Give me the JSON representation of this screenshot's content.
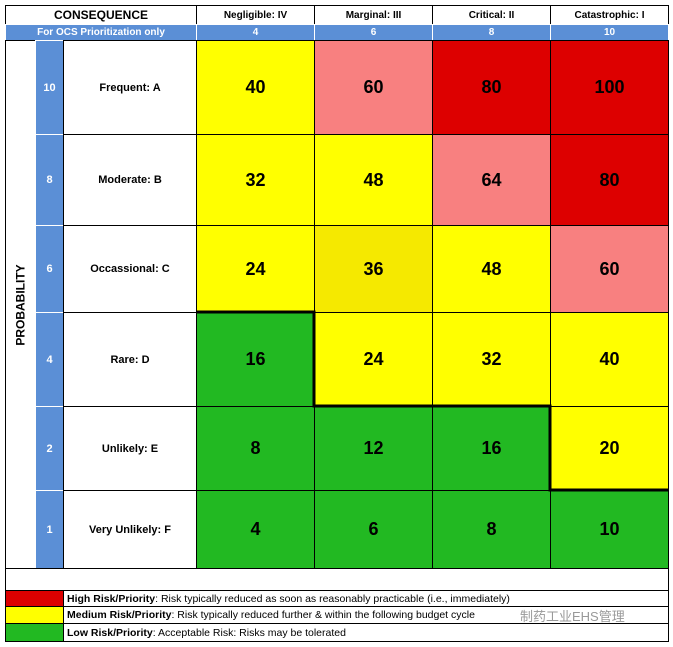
{
  "header": {
    "title": "CONSEQUENCE",
    "subtitle": "For OCS Prioritization only"
  },
  "probability_label": "PROBABILITY",
  "columns": [
    {
      "label": "Negligible: IV",
      "score": 4
    },
    {
      "label": "Marginal: III",
      "score": 6
    },
    {
      "label": "Critical: II",
      "score": 8
    },
    {
      "label": "Catastrophic: I",
      "score": 10
    }
  ],
  "rows": [
    {
      "score": 10,
      "label": "Frequent: A",
      "values": [
        40,
        60,
        80,
        100
      ],
      "colors": [
        "#ffff00",
        "#f88080",
        "#dd0000",
        "#dd0000"
      ]
    },
    {
      "score": 8,
      "label": "Moderate: B",
      "values": [
        32,
        48,
        64,
        80
      ],
      "colors": [
        "#ffff00",
        "#ffff00",
        "#f88080",
        "#dd0000"
      ]
    },
    {
      "score": 6,
      "label": "Occassional: C",
      "values": [
        24,
        36,
        48,
        60
      ],
      "colors": [
        "#ffff00",
        "#f5e900",
        "#ffff00",
        "#f88080"
      ]
    },
    {
      "score": 4,
      "label": "Rare: D",
      "values": [
        16,
        24,
        32,
        40
      ],
      "colors": [
        "#22b922",
        "#ffff00",
        "#ffff00",
        "#ffff00"
      ]
    },
    {
      "score": 2,
      "label": "Unlikely: E",
      "values": [
        8,
        12,
        16,
        20
      ],
      "colors": [
        "#22b922",
        "#22b922",
        "#22b922",
        "#ffff00"
      ]
    },
    {
      "score": 1,
      "label": "Very Unlikely: F",
      "values": [
        4,
        6,
        8,
        10
      ],
      "colors": [
        "#22b922",
        "#22b922",
        "#22b922",
        "#22b922"
      ]
    }
  ],
  "legend": [
    {
      "label": "High Risk/Priority",
      "text": ":  Risk typically reduced as soon as reasonably practicable (i.e., immediately)",
      "color": "#dd0000"
    },
    {
      "label": "Medium Risk/Priority",
      "text": ":  Risk typically reduced further & within the following budget cycle",
      "color": "#ffff00"
    },
    {
      "label": "Low Risk/Priority",
      "text": ":  Acceptable Risk: Risks may be tolerated",
      "color": "#22b922"
    }
  ],
  "watermark": "制药工业EHS管理"
}
